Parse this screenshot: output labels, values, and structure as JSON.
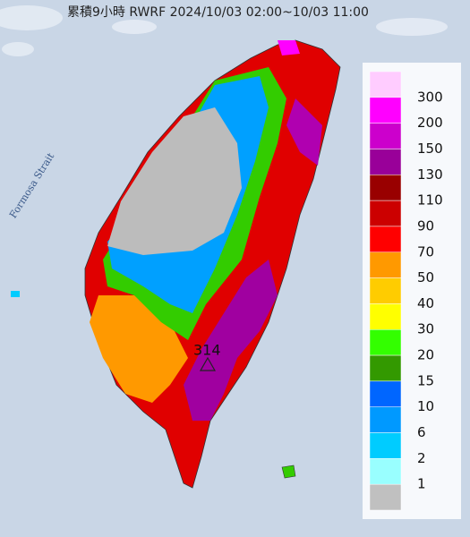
{
  "title": "累積9小時 RWRF 2024/10/03 02:00~10/03 11:00",
  "map_labels": {
    "strait": "Formosa Strait",
    "max_value": "314"
  },
  "legend": {
    "colors": [
      "#ffccff",
      "#ff00ff",
      "#cc00cc",
      "#990099",
      "#990000",
      "#cc0000",
      "#ff0000",
      "#ff9900",
      "#ffcc00",
      "#ffff00",
      "#33ff00",
      "#339900",
      "#0066ff",
      "#0099ff",
      "#00ccff",
      "#99ffff",
      "#c0c0c0"
    ],
    "labels": [
      "300",
      "200",
      "150",
      "130",
      "110",
      "90",
      "70",
      "50",
      "40",
      "30",
      "20",
      "15",
      "10",
      "6",
      "2",
      "1"
    ]
  }
}
